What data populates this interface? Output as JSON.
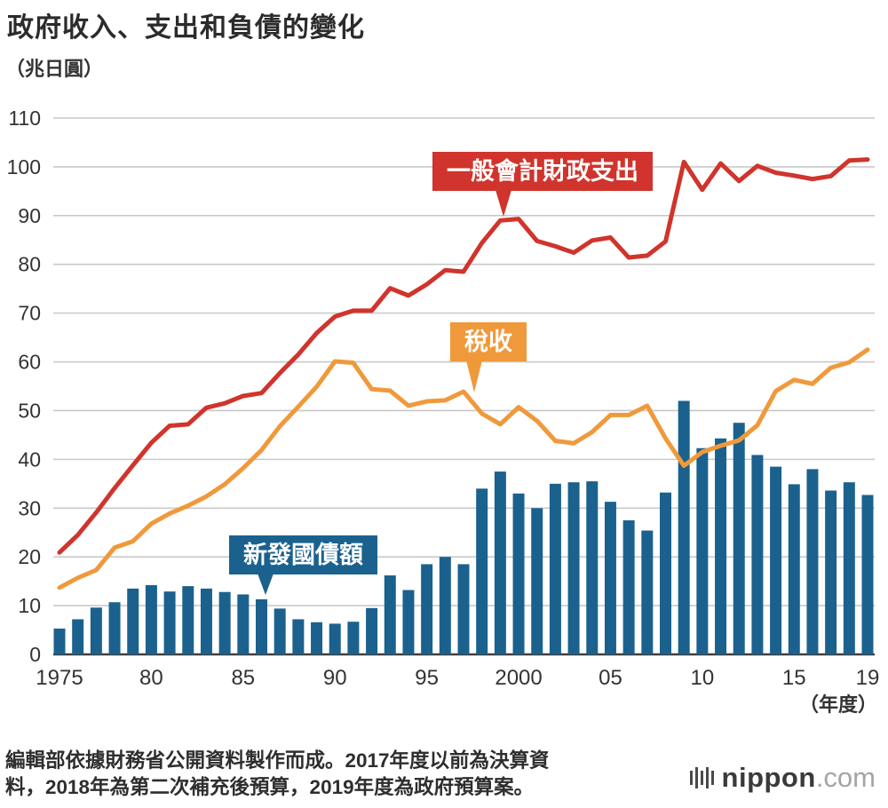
{
  "page": {
    "title": "政府收入、支出和負債的變化",
    "y_axis_unit": "（兆日圓）",
    "x_axis_unit": "（年度）",
    "footer_line1": "編輯部依據財務省公開資料製作而成。2017年度以前為決算資",
    "footer_line2": "料，2018年為第二次補充後預算，2019年度為政府預算案。",
    "logo": {
      "name": "nippon",
      "tld": ".com",
      "icon": "equalizer-bars-icon"
    }
  },
  "colors": {
    "expenditure_red": "#d0342c",
    "tax_orange": "#f0993b",
    "bonds_blue": "#1b618e",
    "grid": "#c9c9c9",
    "axis": "#3f3f3f",
    "text": "#333333"
  },
  "chart_data": {
    "type": "mixed-bar-line",
    "title": "政府收入、支出和負債的變化",
    "ylabel": "（兆日圓）",
    "xlabel": "（年度）",
    "ylim": [
      0,
      110
    ],
    "y_ticks": [
      0,
      10,
      20,
      30,
      40,
      50,
      60,
      70,
      80,
      90,
      100,
      110
    ],
    "grid": "horizontal",
    "x": [
      1975,
      1976,
      1977,
      1978,
      1979,
      1980,
      1981,
      1982,
      1983,
      1984,
      1985,
      1986,
      1987,
      1988,
      1989,
      1990,
      1991,
      1992,
      1993,
      1994,
      1995,
      1996,
      1997,
      1998,
      1999,
      2000,
      2001,
      2002,
      2003,
      2004,
      2005,
      2006,
      2007,
      2008,
      2009,
      2010,
      2011,
      2012,
      2013,
      2014,
      2015,
      2016,
      2017,
      2018,
      2019
    ],
    "x_tick_labels": [
      {
        "index": 0,
        "label": "1975"
      },
      {
        "index": 5,
        "label": "80"
      },
      {
        "index": 10,
        "label": "85"
      },
      {
        "index": 15,
        "label": "90"
      },
      {
        "index": 20,
        "label": "95"
      },
      {
        "index": 25,
        "label": "2000"
      },
      {
        "index": 30,
        "label": "05"
      },
      {
        "index": 35,
        "label": "10"
      },
      {
        "index": 40,
        "label": "15"
      },
      {
        "index": 44,
        "label": "19"
      }
    ],
    "series": [
      {
        "name": "一般會計財政支出",
        "type": "line",
        "color": "#d0342c",
        "values": [
          20.9,
          24.5,
          29.1,
          34.1,
          38.8,
          43.4,
          46.9,
          47.2,
          50.6,
          51.5,
          53.0,
          53.6,
          57.7,
          61.5,
          65.9,
          69.3,
          70.5,
          70.5,
          75.1,
          73.6,
          75.9,
          78.8,
          78.5,
          84.4,
          89.0,
          89.3,
          84.8,
          83.7,
          82.4,
          84.9,
          85.5,
          81.4,
          81.8,
          84.7,
          101.0,
          95.3,
          100.7,
          97.1,
          100.2,
          98.8,
          98.2,
          97.5,
          98.1,
          101.3,
          101.5
        ]
      },
      {
        "name": "稅收",
        "type": "line",
        "color": "#f0993b",
        "values": [
          13.7,
          15.7,
          17.3,
          21.9,
          23.2,
          26.8,
          28.9,
          30.5,
          32.4,
          34.9,
          38.2,
          41.9,
          46.8,
          50.8,
          54.9,
          60.1,
          59.8,
          54.4,
          54.1,
          51.0,
          51.9,
          52.1,
          53.9,
          49.4,
          47.2,
          50.7,
          47.9,
          43.8,
          43.3,
          45.6,
          49.1,
          49.1,
          51.0,
          44.3,
          38.7,
          41.5,
          42.8,
          43.9,
          47.0,
          54.0,
          56.3,
          55.5,
          58.8,
          59.9,
          62.5
        ]
      },
      {
        "name": "新發國債額",
        "type": "bar",
        "color": "#1b618e",
        "values": [
          5.3,
          7.2,
          9.6,
          10.7,
          13.5,
          14.2,
          12.9,
          14.0,
          13.5,
          12.8,
          12.3,
          11.3,
          9.4,
          7.2,
          6.6,
          6.3,
          6.7,
          9.5,
          16.2,
          13.2,
          18.5,
          20.0,
          18.5,
          34.0,
          37.5,
          33.0,
          30.0,
          35.0,
          35.3,
          35.5,
          31.3,
          27.5,
          25.4,
          33.2,
          52.0,
          42.3,
          44.3,
          47.5,
          40.9,
          38.5,
          34.9,
          38.0,
          33.6,
          35.3,
          32.7
        ]
      }
    ],
    "annotations": [
      {
        "label": "一般會計財政支出",
        "series_index": 0,
        "points_to_year": 1999
      },
      {
        "label": "稅收",
        "series_index": 1,
        "points_to_year": 1997
      },
      {
        "label": "新發國債額",
        "series_index": 2,
        "points_to_year": 1986
      }
    ]
  }
}
